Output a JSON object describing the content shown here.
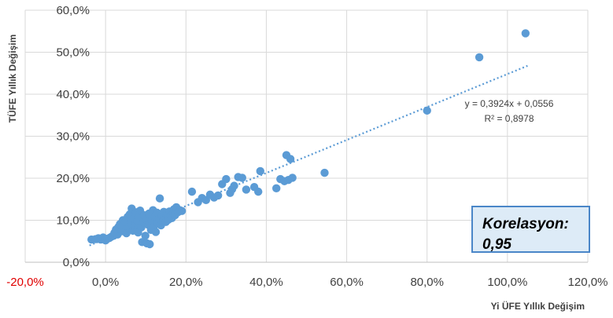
{
  "chart_data": {
    "type": "scatter",
    "title": "",
    "xlabel": "Yi ÜFE Yıllık Değişim",
    "ylabel": "TÜFE Yıllık Değişim",
    "xlim": [
      -20,
      120
    ],
    "ylim": [
      0,
      60
    ],
    "x_ticks": [
      "-20,0%",
      "0,0%",
      "20,0%",
      "40,0%",
      "60,0%",
      "80,0%",
      "100,0%",
      "120,0%"
    ],
    "y_ticks": [
      "0,0%",
      "10,0%",
      "20,0%",
      "30,0%",
      "40,0%",
      "50,0%",
      "60,0%"
    ],
    "grid": true,
    "colors": {
      "points": "#5b9bd5",
      "negative_tick": "#e00000",
      "box_fill": "#ddebf7",
      "box_border": "#4a86c8"
    },
    "trendline": {
      "equation": "y = 0,3924x + 0,0556",
      "r2": "R² = 0,8978",
      "slope": 0.3924,
      "intercept": 0.0556,
      "x_range": [
        -4,
        105
      ]
    },
    "annotation": {
      "line1": "Korelasyon:",
      "line2": "0,95"
    },
    "points": [
      [
        -3.5,
        5.4
      ],
      [
        -2.5,
        5.5
      ],
      [
        -1.8,
        5.7
      ],
      [
        -1.2,
        5.4
      ],
      [
        -0.6,
        5.9
      ],
      [
        0.0,
        5.2
      ],
      [
        0.5,
        5.6
      ],
      [
        1.0,
        5.8
      ],
      [
        1.5,
        6.1
      ],
      [
        2.0,
        6.3
      ],
      [
        2.2,
        7.0
      ],
      [
        2.6,
        7.8
      ],
      [
        3.0,
        6.6
      ],
      [
        3.2,
        8.4
      ],
      [
        3.6,
        9.1
      ],
      [
        4.0,
        7.4
      ],
      [
        4.3,
        10.0
      ],
      [
        4.6,
        8.8
      ],
      [
        4.9,
        9.6
      ],
      [
        5.2,
        6.9
      ],
      [
        5.5,
        10.8
      ],
      [
        5.8,
        8.1
      ],
      [
        6.0,
        11.4
      ],
      [
        6.3,
        9.3
      ],
      [
        6.5,
        12.8
      ],
      [
        6.8,
        7.5
      ],
      [
        7.0,
        10.4
      ],
      [
        7.3,
        8.7
      ],
      [
        7.6,
        11.9
      ],
      [
        7.9,
        9.8
      ],
      [
        8.1,
        7.1
      ],
      [
        8.4,
        10.9
      ],
      [
        8.6,
        12.3
      ],
      [
        8.9,
        8.3
      ],
      [
        9.1,
        4.8
      ],
      [
        9.4,
        9.5
      ],
      [
        9.6,
        11.2
      ],
      [
        9.9,
        6.3
      ],
      [
        10.1,
        10.1
      ],
      [
        10.3,
        4.5
      ],
      [
        10.6,
        8.9
      ],
      [
        10.8,
        11.6
      ],
      [
        11.0,
        4.3
      ],
      [
        11.3,
        7.7
      ],
      [
        11.5,
        9.9
      ],
      [
        11.8,
        12.4
      ],
      [
        12.0,
        8.5
      ],
      [
        12.3,
        10.7
      ],
      [
        12.5,
        7.2
      ],
      [
        12.8,
        11.8
      ],
      [
        13.0,
        9.2
      ],
      [
        13.3,
        10.4
      ],
      [
        13.5,
        15.2
      ],
      [
        13.8,
        8.8
      ],
      [
        14.0,
        11.1
      ],
      [
        14.3,
        9.7
      ],
      [
        14.5,
        12.0
      ],
      [
        14.8,
        10.3
      ],
      [
        15.0,
        9.6
      ],
      [
        15.3,
        11.5
      ],
      [
        15.6,
        10.1
      ],
      [
        15.9,
        12.1
      ],
      [
        16.2,
        11.0
      ],
      [
        16.5,
        10.5
      ],
      [
        16.8,
        11.7
      ],
      [
        17.0,
        12.6
      ],
      [
        17.3,
        11.2
      ],
      [
        17.6,
        13.1
      ],
      [
        18.0,
        11.9
      ],
      [
        18.5,
        12.4
      ],
      [
        19.0,
        12.2
      ],
      [
        21.5,
        16.8
      ],
      [
        23.0,
        14.3
      ],
      [
        24.0,
        15.3
      ],
      [
        25.0,
        14.8
      ],
      [
        26.0,
        16.1
      ],
      [
        27.0,
        15.4
      ],
      [
        28.0,
        15.9
      ],
      [
        29.0,
        18.6
      ],
      [
        30.0,
        19.8
      ],
      [
        31.0,
        16.5
      ],
      [
        31.5,
        17.4
      ],
      [
        32.0,
        18.2
      ],
      [
        33.0,
        20.3
      ],
      [
        34.0,
        20.1
      ],
      [
        35.0,
        17.3
      ],
      [
        37.0,
        17.9
      ],
      [
        38.0,
        16.8
      ],
      [
        38.5,
        21.7
      ],
      [
        42.5,
        17.6
      ],
      [
        43.5,
        19.8
      ],
      [
        44.5,
        19.3
      ],
      [
        45.0,
        25.5
      ],
      [
        45.5,
        19.6
      ],
      [
        46.0,
        24.6
      ],
      [
        46.5,
        20.1
      ],
      [
        54.5,
        21.3
      ],
      [
        80.0,
        36.1
      ],
      [
        93.0,
        48.8
      ],
      [
        104.5,
        54.5
      ]
    ]
  }
}
